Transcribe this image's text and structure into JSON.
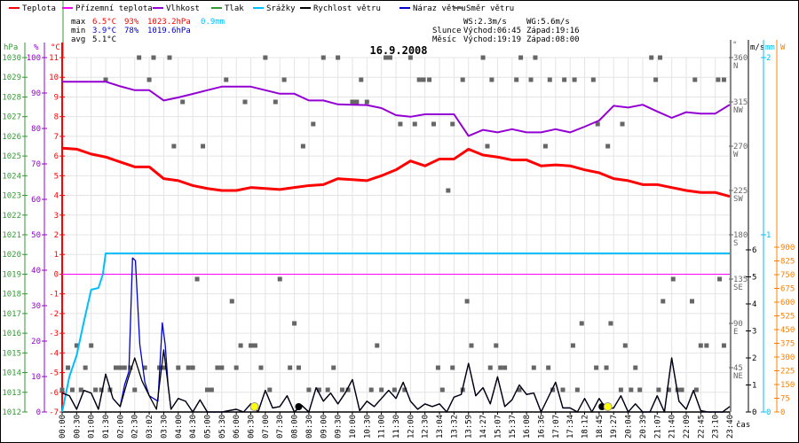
{
  "chart_data": {
    "type": "line",
    "title": "16.9.2008",
    "legend": [
      {
        "label": "Teplota",
        "color": "#ff0000"
      },
      {
        "label": "Přízemní teplota",
        "color": "#ff00ff"
      },
      {
        "label": "Vlhkost",
        "color": "#9400d3"
      },
      {
        "label": "Tlak",
        "color": "#339933"
      },
      {
        "label": "Srážky",
        "color": "#00bfff"
      },
      {
        "label": "Rychlost větru",
        "color": "#000000"
      },
      {
        "label": "Náraz větru",
        "color": "#0000cc"
      },
      {
        "label": "Směr větru",
        "color": "#666666"
      }
    ],
    "legend_placement": "top",
    "stats": {
      "max": {
        "label": "max",
        "temp": "6.5°C",
        "hum": "93%",
        "press": "1023.2hPa",
        "rain": "0.9mm"
      },
      "min": {
        "label": "min",
        "temp": "3.9°C",
        "hum": "78%",
        "press": "1019.6hPa"
      },
      "avg": {
        "label": "avg",
        "temp": "5.1°C"
      }
    },
    "info": {
      "ws": "WS:2.3m/s",
      "wg": "WG:5.6m/s",
      "sun_label": "Slunce",
      "sunrise": "Východ:06:45",
      "sunset": "Západ:19:16",
      "moon_label": "Měsíc",
      "moonrise": "Východ:19:19",
      "moonset": "Západ:08:00"
    },
    "axes": {
      "hpa": {
        "unit": "hPa",
        "range": [
          1012,
          1030
        ],
        "ticks": [
          1030,
          1029,
          1028,
          1027,
          1026,
          1025,
          1024,
          1023,
          1022,
          1021,
          1020,
          1019,
          1018,
          1017,
          1016,
          1015,
          1014,
          1013,
          1012
        ]
      },
      "pct": {
        "unit": "%",
        "range": [
          0,
          100
        ],
        "ticks": [
          100,
          90,
          80,
          70,
          60,
          50,
          40,
          30,
          20,
          10,
          0
        ]
      },
      "temp": {
        "unit": "°C",
        "range": [
          -7,
          11
        ],
        "ticks": [
          11,
          10,
          9,
          8,
          7,
          6,
          5,
          4,
          3,
          2,
          1,
          0,
          -1,
          -2,
          -3,
          -4,
          -5,
          -6,
          -7
        ]
      },
      "dir": {
        "unit": "°",
        "range": [
          0,
          360
        ],
        "ticks": [
          {
            "v": 360,
            "l": "N"
          },
          {
            "v": 315,
            "l": "NW"
          },
          {
            "v": 270,
            "l": "W"
          },
          {
            "v": 225,
            "l": "SW"
          },
          {
            "v": 180,
            "l": "S"
          },
          {
            "v": 135,
            "l": "SE"
          },
          {
            "v": 90,
            "l": "E"
          },
          {
            "v": 45,
            "l": "NE"
          }
        ]
      },
      "ms": {
        "unit": "m/s",
        "range": [
          0,
          6.5
        ],
        "ticks": [
          6,
          5,
          4,
          3,
          2,
          1,
          0
        ]
      },
      "mm": {
        "unit": "mm",
        "range": [
          0,
          2
        ],
        "ticks": [
          2,
          1,
          0
        ]
      },
      "w": {
        "unit": "W",
        "range": [
          0,
          975
        ],
        "ticks": [
          900,
          825,
          750,
          675,
          600,
          525,
          450,
          375,
          300,
          225,
          150,
          75,
          0
        ]
      },
      "xlabel": "čas"
    },
    "x": [
      "00:00",
      "00:30",
      "01:00",
      "01:30",
      "02:00",
      "02:30",
      "03:02",
      "03:30",
      "04:00",
      "04:30",
      "05:00",
      "05:30",
      "06:00",
      "06:30",
      "07:00",
      "07:30",
      "08:00",
      "08:30",
      "09:00",
      "09:30",
      "10:00",
      "10:30",
      "11:00",
      "11:30",
      "12:00",
      "12:30",
      "13:04",
      "13:32",
      "13:59",
      "14:27",
      "15:07",
      "15:37",
      "16:08",
      "16:36",
      "17:07",
      "17:34",
      "18:12",
      "18:45",
      "19:27",
      "20:04",
      "20:39",
      "21:07",
      "21:40",
      "22:09",
      "22:45",
      "23:10",
      "23:40"
    ],
    "series": {
      "temperature": [
        6.4,
        6.35,
        6.1,
        5.95,
        5.7,
        5.45,
        5.45,
        4.85,
        4.75,
        4.5,
        4.35,
        4.25,
        4.25,
        4.4,
        4.35,
        4.3,
        4.4,
        4.5,
        4.55,
        4.85,
        4.8,
        4.75,
        5.0,
        5.3,
        5.75,
        5.5,
        5.85,
        5.85,
        6.35,
        6.05,
        5.95,
        5.8,
        5.8,
        5.5,
        5.55,
        5.5,
        5.3,
        5.15,
        4.85,
        4.75,
        4.55,
        4.55,
        4.4,
        4.25,
        4.15,
        4.15,
        3.95
      ],
      "humidity": [
        93.2,
        93.2,
        93.2,
        93.2,
        91.9,
        90.8,
        90.8,
        87.9,
        88.75,
        89.75,
        90.8,
        91.8,
        91.8,
        91.8,
        90.8,
        89.8,
        89.8,
        87.9,
        87.9,
        86.8,
        86.7,
        86.6,
        85.75,
        83.75,
        83.3,
        84,
        84,
        84,
        77.9,
        79.6,
        78.9,
        79.8,
        78.9,
        78.9,
        79.8,
        78.9,
        80.5,
        82.25,
        86.4,
        85.9,
        86.7,
        84.8,
        83,
        84.6,
        84.2,
        84.2,
        86.7
      ],
      "ground_temperature": 0,
      "rain_cumulative": [
        [
          0,
          0
        ],
        [
          0.5,
          0.2
        ],
        [
          1,
          0.32
        ],
        [
          1.5,
          0.51
        ],
        [
          2,
          0.69
        ],
        [
          2.5,
          0.7
        ],
        [
          2.8,
          0.775
        ],
        [
          3,
          0.895
        ],
        [
          46,
          0.895
        ]
      ],
      "wind_speed": [
        [
          0,
          0.7
        ],
        [
          0.5,
          0.6
        ],
        [
          1,
          0.1
        ],
        [
          1.5,
          0.8
        ],
        [
          2,
          0.7
        ],
        [
          2.5,
          0.1
        ],
        [
          3,
          1.4
        ],
        [
          3.5,
          0.5
        ],
        [
          4,
          0.2
        ],
        [
          4.5,
          1.15
        ],
        [
          5,
          2.0
        ],
        [
          5.5,
          1.15
        ],
        [
          6,
          0.6
        ],
        [
          6.5,
          0.1
        ],
        [
          7,
          2.3
        ],
        [
          7.5,
          0.1
        ],
        [
          8,
          0.5
        ],
        [
          8.5,
          0.4
        ],
        [
          9,
          0
        ],
        [
          9.5,
          0.45
        ],
        [
          10,
          0
        ],
        [
          11,
          0
        ],
        [
          12,
          0.1
        ],
        [
          12.5,
          0
        ],
        [
          13,
          0.3
        ],
        [
          13.5,
          0
        ],
        [
          14,
          0.8
        ],
        [
          14.5,
          0.15
        ],
        [
          15,
          0.2
        ],
        [
          15.5,
          0.6
        ],
        [
          16,
          0
        ],
        [
          16.5,
          0.25
        ],
        [
          17,
          0
        ],
        [
          17.5,
          0.9
        ],
        [
          18,
          0.4
        ],
        [
          18.5,
          0.7
        ],
        [
          19,
          0.3
        ],
        [
          19.5,
          0.7
        ],
        [
          20,
          1.2
        ],
        [
          20.5,
          0.05
        ],
        [
          21,
          0.4
        ],
        [
          21.5,
          0.2
        ],
        [
          22,
          0.5
        ],
        [
          22.5,
          0.8
        ],
        [
          23,
          0.5
        ],
        [
          23.5,
          1.1
        ],
        [
          24,
          0.4
        ],
        [
          24.5,
          0.1
        ],
        [
          25,
          0.3
        ],
        [
          25.5,
          0.2
        ],
        [
          26,
          0.3
        ],
        [
          26.5,
          0
        ],
        [
          27,
          0.55
        ],
        [
          27.5,
          0.65
        ],
        [
          28,
          1.8
        ],
        [
          28.5,
          0.6
        ],
        [
          29,
          0.9
        ],
        [
          29.5,
          0.3
        ],
        [
          30,
          1.3
        ],
        [
          30.5,
          0.2
        ],
        [
          31,
          0.45
        ],
        [
          31.5,
          1.0
        ],
        [
          32,
          0.65
        ],
        [
          32.5,
          0.7
        ],
        [
          33,
          0
        ],
        [
          33.5,
          0.55
        ],
        [
          34,
          1.1
        ],
        [
          34.5,
          0.15
        ],
        [
          35,
          0.15
        ],
        [
          35.5,
          0
        ],
        [
          36,
          0.5
        ],
        [
          36.5,
          0
        ],
        [
          37,
          0.5
        ],
        [
          37.5,
          0.1
        ],
        [
          38,
          0.15
        ],
        [
          38.5,
          0.6
        ],
        [
          39,
          0
        ],
        [
          39.5,
          0.3
        ],
        [
          40,
          0
        ],
        [
          40.5,
          0
        ],
        [
          41,
          0.6
        ],
        [
          41.5,
          0
        ],
        [
          42,
          2.0
        ],
        [
          42.5,
          0.4
        ],
        [
          43,
          0.1
        ],
        [
          43.5,
          0.8
        ],
        [
          44,
          0.05
        ],
        [
          44.5,
          0
        ],
        [
          45.5,
          0
        ],
        [
          46,
          0.2
        ]
      ],
      "wind_gust": [
        [
          4.3,
          1.0
        ],
        [
          4.6,
          1.5
        ],
        [
          4.85,
          5.7
        ],
        [
          5.05,
          5.6
        ],
        [
          5.35,
          2.5
        ],
        [
          5.7,
          1.1
        ],
        [
          6.0,
          0.6
        ],
        [
          6.6,
          0.4
        ],
        [
          6.9,
          3.3
        ],
        [
          7.1,
          2.5
        ],
        [
          7.3,
          1.0
        ],
        [
          7.5,
          0.1
        ]
      ],
      "wind_direction": [
        [
          3.0,
          337.5
        ],
        [
          5.3,
          360
        ],
        [
          6.0,
          337.5
        ],
        [
          6.3,
          360
        ],
        [
          7.4,
          360
        ],
        [
          7.7,
          270
        ],
        [
          8.3,
          315
        ],
        [
          9.7,
          270
        ],
        [
          11.3,
          337.5
        ],
        [
          12.6,
          315
        ],
        [
          14.0,
          360
        ],
        [
          14.7,
          315
        ],
        [
          15.3,
          337.5
        ],
        [
          16.6,
          270
        ],
        [
          17.3,
          292.5
        ],
        [
          18.0,
          360
        ],
        [
          19.0,
          360
        ],
        [
          20.0,
          315
        ],
        [
          20.3,
          315
        ],
        [
          20.6,
          337.5
        ],
        [
          21.0,
          315
        ],
        [
          22.3,
          360
        ],
        [
          22.6,
          360
        ],
        [
          24.0,
          360
        ],
        [
          23.3,
          292.5
        ],
        [
          24.3,
          292.5
        ],
        [
          24.6,
          337.5
        ],
        [
          24.9,
          337.5
        ],
        [
          25.3,
          337.5
        ],
        [
          25.6,
          292.5
        ],
        [
          26.6,
          225
        ],
        [
          26.9,
          292.5
        ],
        [
          27.6,
          337.5
        ],
        [
          29.0,
          360
        ],
        [
          29.3,
          270
        ],
        [
          29.6,
          337.5
        ],
        [
          31.3,
          337.5
        ],
        [
          31.6,
          360
        ],
        [
          32.3,
          337.5
        ],
        [
          32.6,
          360
        ],
        [
          33.3,
          270
        ],
        [
          33.6,
          337.5
        ],
        [
          34.6,
          337.5
        ],
        [
          35.3,
          337.5
        ],
        [
          36.6,
          337.5
        ],
        [
          36.9,
          292.5
        ],
        [
          37.6,
          270
        ],
        [
          38.6,
          292.5
        ],
        [
          40.6,
          360
        ],
        [
          40.9,
          337.5
        ],
        [
          41.2,
          360
        ],
        [
          43.6,
          337.5
        ],
        [
          45.2,
          337.5
        ],
        [
          45.6,
          337.5
        ],
        [
          0.0,
          22.5
        ],
        [
          0.4,
          45
        ],
        [
          0.7,
          22.5
        ],
        [
          1.0,
          67.5
        ],
        [
          1.3,
          22.5
        ],
        [
          1.6,
          45
        ],
        [
          2.0,
          67.5
        ],
        [
          2.3,
          22.5
        ],
        [
          2.7,
          22.5
        ],
        [
          3.3,
          22.5
        ],
        [
          3.7,
          45
        ],
        [
          4.0,
          45
        ],
        [
          4.3,
          45
        ],
        [
          4.7,
          45
        ],
        [
          5.0,
          22.5
        ],
        [
          5.7,
          45
        ],
        [
          6.7,
          45
        ],
        [
          7.0,
          45
        ],
        [
          8.0,
          45
        ],
        [
          8.7,
          45
        ],
        [
          9.0,
          45
        ],
        [
          9.3,
          135
        ],
        [
          10.0,
          22.5
        ],
        [
          10.3,
          22.5
        ],
        [
          10.7,
          45
        ],
        [
          11.0,
          45
        ],
        [
          11.7,
          112.5
        ],
        [
          12.0,
          45
        ],
        [
          12.3,
          67.5
        ],
        [
          13.0,
          67.5
        ],
        [
          13.3,
          67.5
        ],
        [
          13.7,
          45
        ],
        [
          14.3,
          22.5
        ],
        [
          15.0,
          135
        ],
        [
          15.7,
          45
        ],
        [
          16.0,
          90
        ],
        [
          16.3,
          45
        ],
        [
          17.0,
          22.5
        ],
        [
          17.7,
          22.5
        ],
        [
          18.3,
          22.5
        ],
        [
          18.7,
          45
        ],
        [
          19.3,
          22.5
        ],
        [
          19.7,
          22.5
        ],
        [
          21.3,
          22.5
        ],
        [
          21.7,
          67.5
        ],
        [
          22.0,
          22.5
        ],
        [
          22.9,
          22.5
        ],
        [
          23.6,
          22.5
        ],
        [
          25.9,
          45
        ],
        [
          26.2,
          22.5
        ],
        [
          26.9,
          45
        ],
        [
          27.6,
          22.5
        ],
        [
          27.9,
          112.5
        ],
        [
          28.2,
          67.5
        ],
        [
          29.5,
          45
        ],
        [
          29.9,
          67.5
        ],
        [
          30.2,
          45
        ],
        [
          30.5,
          45
        ],
        [
          31.5,
          22.5
        ],
        [
          32.5,
          45
        ],
        [
          33.5,
          45
        ],
        [
          33.8,
          22.5
        ],
        [
          34.5,
          22.5
        ],
        [
          35.2,
          67.5
        ],
        [
          35.5,
          22.5
        ],
        [
          35.8,
          90
        ],
        [
          36.8,
          45
        ],
        [
          37.5,
          45
        ],
        [
          37.8,
          90
        ],
        [
          38.5,
          22.5
        ],
        [
          38.8,
          67.5
        ],
        [
          39.2,
          22.5
        ],
        [
          39.5,
          45
        ],
        [
          39.8,
          22.5
        ],
        [
          41.1,
          22.5
        ],
        [
          41.4,
          112.5
        ],
        [
          41.8,
          22.5
        ],
        [
          42.1,
          135
        ],
        [
          42.4,
          22.5
        ],
        [
          42.7,
          22.5
        ],
        [
          43.4,
          112.5
        ],
        [
          43.7,
          22.5
        ],
        [
          44.0,
          67.5
        ],
        [
          44.4,
          67.5
        ],
        [
          45.3,
          135
        ],
        [
          45.6,
          67.5
        ]
      ],
      "sun_markers": [
        13.25,
        37.6
      ],
      "moon_markers": [
        16.3,
        37.2
      ]
    }
  }
}
